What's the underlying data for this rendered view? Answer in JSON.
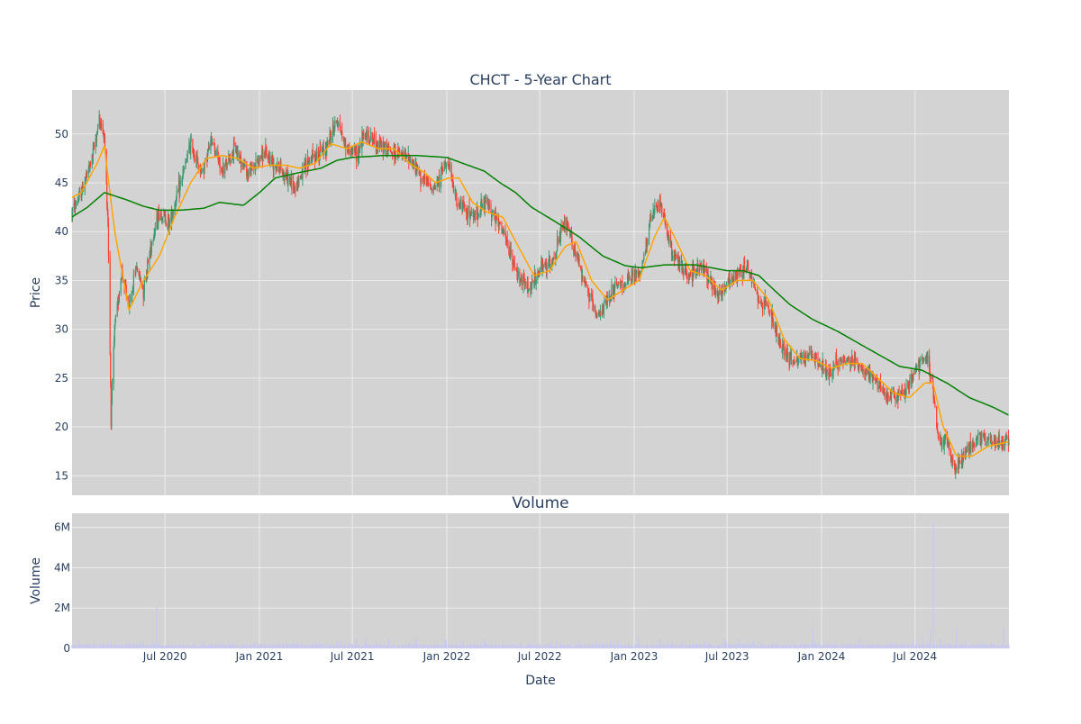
{
  "chart_data": {
    "type": "candlestick",
    "title": "CHCT - 5-Year Chart",
    "subplot_title": "Volume",
    "xlabel": "Date",
    "price_panel": {
      "ylabel": "Price",
      "ylim": [
        13,
        54.5
      ],
      "yticks": [
        15,
        20,
        25,
        30,
        35,
        40,
        45,
        50
      ],
      "grid": true,
      "background": "#d3d3d3",
      "series": [
        {
          "kind": "candlestick",
          "up_color": "#3d9970",
          "down_color": "#ff4136",
          "ohlc_keypoints": [
            [
              "2020-01-02",
              42.0
            ],
            [
              "2020-01-20",
              44.0
            ],
            [
              "2020-02-10",
              47.5
            ],
            [
              "2020-02-24",
              51.5
            ],
            [
              "2020-03-05",
              49.5
            ],
            [
              "2020-03-12",
              41.0
            ],
            [
              "2020-03-18",
              21.0
            ],
            [
              "2020-03-25",
              30.0
            ],
            [
              "2020-04-08",
              36.0
            ],
            [
              "2020-04-22",
              32.0
            ],
            [
              "2020-05-06",
              36.5
            ],
            [
              "2020-05-20",
              34.0
            ],
            [
              "2020-06-05",
              39.0
            ],
            [
              "2020-06-20",
              42.0
            ],
            [
              "2020-07-10",
              41.0
            ],
            [
              "2020-08-01",
              45.0
            ],
            [
              "2020-08-20",
              49.0
            ],
            [
              "2020-09-10",
              46.0
            ],
            [
              "2020-10-01",
              49.5
            ],
            [
              "2020-10-20",
              46.0
            ],
            [
              "2020-11-15",
              48.5
            ],
            [
              "2020-12-10",
              46.0
            ],
            [
              "2021-01-10",
              48.0
            ],
            [
              "2021-02-10",
              46.5
            ],
            [
              "2021-03-10",
              44.5
            ],
            [
              "2021-04-10",
              47.5
            ],
            [
              "2021-05-10",
              48.5
            ],
            [
              "2021-06-01",
              51.5
            ],
            [
              "2021-06-20",
              48.5
            ],
            [
              "2021-07-10",
              48.0
            ],
            [
              "2021-07-25",
              50.0
            ],
            [
              "2021-08-20",
              49.0
            ],
            [
              "2021-09-20",
              48.0
            ],
            [
              "2021-10-20",
              47.5
            ],
            [
              "2021-11-20",
              45.0
            ],
            [
              "2021-12-10",
              44.5
            ],
            [
              "2022-01-01",
              47.5
            ],
            [
              "2022-01-20",
              43.0
            ],
            [
              "2022-02-20",
              41.5
            ],
            [
              "2022-03-20",
              43.0
            ],
            [
              "2022-04-20",
              40.0
            ],
            [
              "2022-05-15",
              36.0
            ],
            [
              "2022-06-10",
              34.0
            ],
            [
              "2022-07-01",
              36.0
            ],
            [
              "2022-07-25",
              37.0
            ],
            [
              "2022-08-20",
              41.0
            ],
            [
              "2022-09-20",
              36.0
            ],
            [
              "2022-10-20",
              31.0
            ],
            [
              "2022-11-20",
              34.0
            ],
            [
              "2022-12-20",
              35.0
            ],
            [
              "2023-01-15",
              36.0
            ],
            [
              "2023-02-01",
              41.0
            ],
            [
              "2023-02-20",
              43.0
            ],
            [
              "2023-03-15",
              38.0
            ],
            [
              "2023-04-15",
              35.5
            ],
            [
              "2023-05-15",
              36.5
            ],
            [
              "2023-06-15",
              33.5
            ],
            [
              "2023-07-15",
              35.5
            ],
            [
              "2023-08-10",
              36.5
            ],
            [
              "2023-09-01",
              33.0
            ],
            [
              "2023-09-20",
              32.5
            ],
            [
              "2023-10-10",
              28.5
            ],
            [
              "2023-11-10",
              26.5
            ],
            [
              "2023-12-10",
              27.5
            ],
            [
              "2024-01-10",
              25.5
            ],
            [
              "2024-02-10",
              27.0
            ],
            [
              "2024-03-10",
              26.5
            ],
            [
              "2024-04-10",
              25.0
            ],
            [
              "2024-05-10",
              23.0
            ],
            [
              "2024-06-10",
              23.5
            ],
            [
              "2024-07-10",
              26.5
            ],
            [
              "2024-07-25",
              27.0
            ],
            [
              "2024-08-05",
              24.0
            ],
            [
              "2024-08-15",
              19.0
            ],
            [
              "2024-09-01",
              18.5
            ],
            [
              "2024-09-15",
              15.5
            ],
            [
              "2024-10-10",
              17.5
            ],
            [
              "2024-11-01",
              19.0
            ],
            [
              "2024-12-01",
              18.5
            ],
            [
              "2024-12-31",
              18.5
            ]
          ]
        },
        {
          "kind": "line",
          "color": "#ffa500",
          "points": [
            [
              "2020-01-02",
              43.5
            ],
            [
              "2020-01-20",
              44.0
            ],
            [
              "2020-02-20",
              47.0
            ],
            [
              "2020-03-05",
              48.8
            ],
            [
              "2020-03-25",
              40.0
            ],
            [
              "2020-04-22",
              32.0
            ],
            [
              "2020-05-20",
              35.0
            ],
            [
              "2020-06-20",
              37.5
            ],
            [
              "2020-07-20",
              41.5
            ],
            [
              "2020-08-20",
              45.0
            ],
            [
              "2020-09-20",
              47.5
            ],
            [
              "2020-10-20",
              47.8
            ],
            [
              "2020-11-20",
              47.5
            ],
            [
              "2020-12-20",
              46.5
            ],
            [
              "2021-01-20",
              46.8
            ],
            [
              "2021-02-20",
              46.8
            ],
            [
              "2021-03-20",
              46.5
            ],
            [
              "2021-04-20",
              47.0
            ],
            [
              "2021-05-20",
              49.0
            ],
            [
              "2021-06-20",
              48.5
            ],
            [
              "2021-07-20",
              49.2
            ],
            [
              "2021-08-20",
              48.5
            ],
            [
              "2021-09-20",
              48.5
            ],
            [
              "2021-10-20",
              47.0
            ],
            [
              "2021-11-20",
              46.0
            ],
            [
              "2021-12-10",
              45.0
            ],
            [
              "2022-01-05",
              45.5
            ],
            [
              "2022-01-25",
              45.5
            ],
            [
              "2022-02-20",
              43.0
            ],
            [
              "2022-03-20",
              42.0
            ],
            [
              "2022-04-20",
              41.5
            ],
            [
              "2022-05-20",
              38.5
            ],
            [
              "2022-06-20",
              35.5
            ],
            [
              "2022-07-20",
              36.0
            ],
            [
              "2022-08-20",
              38.5
            ],
            [
              "2022-09-10",
              39.0
            ],
            [
              "2022-10-10",
              35.0
            ],
            [
              "2022-11-10",
              33.0
            ],
            [
              "2022-12-10",
              34.0
            ],
            [
              "2023-01-10",
              35.0
            ],
            [
              "2023-02-10",
              39.5
            ],
            [
              "2023-03-01",
              41.5
            ],
            [
              "2023-03-20",
              39.5
            ],
            [
              "2023-04-20",
              36.0
            ],
            [
              "2023-05-20",
              35.5
            ],
            [
              "2023-06-20",
              34.0
            ],
            [
              "2023-07-20",
              35.0
            ],
            [
              "2023-08-20",
              35.0
            ],
            [
              "2023-09-20",
              33.0
            ],
            [
              "2023-10-20",
              29.0
            ],
            [
              "2023-11-20",
              27.0
            ],
            [
              "2023-12-20",
              26.8
            ],
            [
              "2024-01-20",
              26.0
            ],
            [
              "2024-02-20",
              26.5
            ],
            [
              "2024-03-20",
              26.5
            ],
            [
              "2024-04-20",
              25.0
            ],
            [
              "2024-05-20",
              23.5
            ],
            [
              "2024-06-20",
              23.0
            ],
            [
              "2024-07-20",
              24.5
            ],
            [
              "2024-08-05",
              24.5
            ],
            [
              "2024-08-25",
              20.0
            ],
            [
              "2024-09-20",
              17.0
            ],
            [
              "2024-10-20",
              17.0
            ],
            [
              "2024-11-20",
              18.0
            ],
            [
              "2024-12-31",
              18.5
            ]
          ]
        },
        {
          "kind": "line",
          "color": "#008000",
          "points": [
            [
              "2020-01-02",
              41.5
            ],
            [
              "2020-02-01",
              42.5
            ],
            [
              "2020-03-05",
              44.0
            ],
            [
              "2020-04-15",
              43.3
            ],
            [
              "2020-05-20",
              42.6
            ],
            [
              "2020-06-20",
              42.2
            ],
            [
              "2020-08-01",
              42.2
            ],
            [
              "2020-09-15",
              42.4
            ],
            [
              "2020-10-15",
              43.0
            ],
            [
              "2020-11-15",
              42.8
            ],
            [
              "2020-12-01",
              42.7
            ],
            [
              "2021-01-01",
              44.0
            ],
            [
              "2021-02-01",
              45.5
            ],
            [
              "2021-03-15",
              46.0
            ],
            [
              "2021-05-01",
              46.5
            ],
            [
              "2021-06-01",
              47.3
            ],
            [
              "2021-07-01",
              47.6
            ],
            [
              "2021-09-01",
              47.8
            ],
            [
              "2021-11-01",
              47.8
            ],
            [
              "2021-12-01",
              47.7
            ],
            [
              "2022-01-01",
              47.6
            ],
            [
              "2022-02-01",
              47.0
            ],
            [
              "2022-03-15",
              46.2
            ],
            [
              "2022-04-15",
              45.0
            ],
            [
              "2022-05-15",
              44.0
            ],
            [
              "2022-06-15",
              42.5
            ],
            [
              "2022-08-01",
              41.0
            ],
            [
              "2022-09-15",
              39.5
            ],
            [
              "2022-11-01",
              37.5
            ],
            [
              "2022-12-15",
              36.5
            ],
            [
              "2023-01-15",
              36.3
            ],
            [
              "2023-03-01",
              36.6
            ],
            [
              "2023-05-01",
              36.6
            ],
            [
              "2023-07-01",
              36.0
            ],
            [
              "2023-08-01",
              36.0
            ],
            [
              "2023-09-01",
              35.5
            ],
            [
              "2023-10-01",
              34.0
            ],
            [
              "2023-11-01",
              32.5
            ],
            [
              "2023-12-15",
              31.0
            ],
            [
              "2024-02-01",
              29.8
            ],
            [
              "2024-04-01",
              28.0
            ],
            [
              "2024-06-01",
              26.2
            ],
            [
              "2024-07-15",
              25.8
            ],
            [
              "2024-09-01",
              24.5
            ],
            [
              "2024-10-15",
              23.0
            ],
            [
              "2024-12-01",
              22.0
            ],
            [
              "2024-12-31",
              21.2
            ]
          ]
        }
      ]
    },
    "volume_panel": {
      "ylabel": "Volume",
      "ylim": [
        0,
        6700000
      ],
      "yticks": [
        0,
        2000000,
        4000000,
        6000000
      ],
      "ytick_labels": [
        "0",
        "2M",
        "4M",
        "6M"
      ],
      "grid": true,
      "background": "#d3d3d3",
      "bar_color": "#c8c8f0",
      "baseline_volume": 120000,
      "spikes": [
        [
          "2020-03-18",
          380000
        ],
        [
          "2020-05-20",
          350000
        ],
        [
          "2020-06-15",
          2050000
        ],
        [
          "2021-01-02",
          450000
        ],
        [
          "2021-06-25",
          300000
        ],
        [
          "2021-12-31",
          420000
        ],
        [
          "2022-03-18",
          300000
        ],
        [
          "2022-09-16",
          420000
        ],
        [
          "2023-03-17",
          300000
        ],
        [
          "2023-06-30",
          280000
        ],
        [
          "2023-12-15",
          1020000
        ],
        [
          "2024-03-15",
          520000
        ],
        [
          "2024-06-28",
          430000
        ],
        [
          "2024-07-15",
          650000
        ],
        [
          "2024-08-01",
          1000000
        ],
        [
          "2024-08-06",
          6300000
        ],
        [
          "2024-08-20",
          550000
        ],
        [
          "2024-09-20",
          1050000
        ],
        [
          "2024-12-20",
          1100000
        ]
      ]
    },
    "x_range": [
      "2020-01-02",
      "2024-12-31"
    ],
    "x_ticks": [
      {
        "date": "2020-07-01",
        "label": "Jul 2020"
      },
      {
        "date": "2021-01-01",
        "label": "Jan 2021"
      },
      {
        "date": "2021-07-01",
        "label": "Jul 2021"
      },
      {
        "date": "2022-01-01",
        "label": "Jan 2022"
      },
      {
        "date": "2022-07-01",
        "label": "Jul 2022"
      },
      {
        "date": "2023-01-01",
        "label": "Jan 2023"
      },
      {
        "date": "2023-07-01",
        "label": "Jul 2023"
      },
      {
        "date": "2024-01-01",
        "label": "Jan 2024"
      },
      {
        "date": "2024-07-01",
        "label": "Jul 2024"
      }
    ]
  }
}
